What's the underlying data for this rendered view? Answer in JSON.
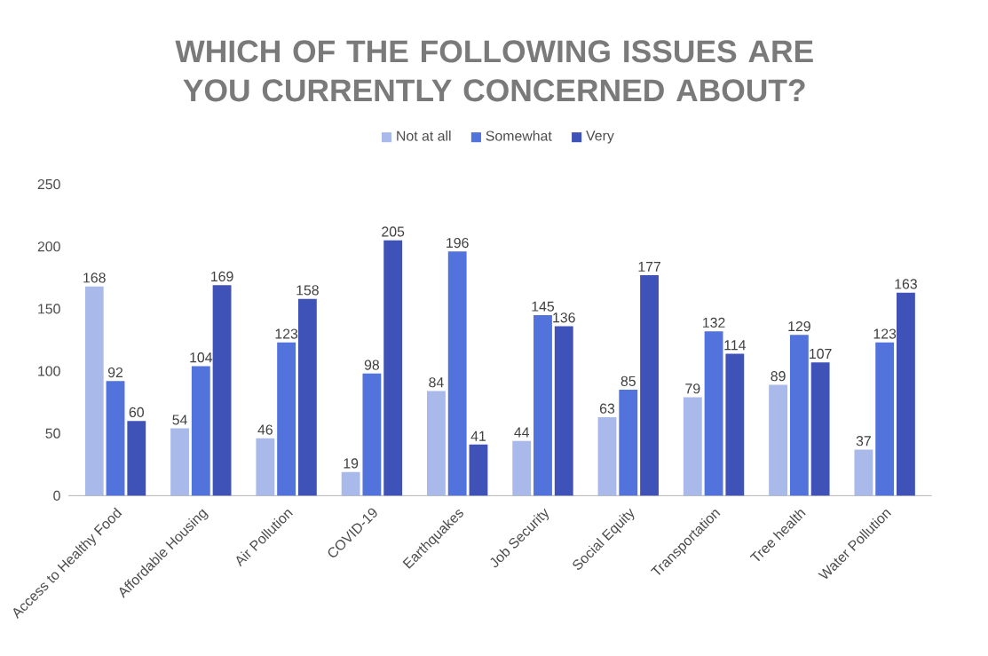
{
  "chart_data": {
    "type": "bar",
    "title": "WHICH OF THE FOLLOWING ISSUES ARE YOU CURRENTLY CONCERNED ABOUT?",
    "categories": [
      "Access to Healthy Food",
      "Affordable Housing",
      "Air Pollution",
      "COVID-19",
      "Earthquakes",
      "Job Security",
      "Social Equity",
      "Transportation",
      "Tree health",
      "Water Pollution"
    ],
    "series": [
      {
        "name": "Not at all",
        "color": "#a9b9ea",
        "values": [
          168,
          54,
          46,
          19,
          84,
          44,
          63,
          79,
          89,
          37
        ]
      },
      {
        "name": "Somewhat",
        "color": "#5272dc",
        "values": [
          92,
          104,
          123,
          98,
          196,
          145,
          85,
          132,
          129,
          123
        ]
      },
      {
        "name": "Very",
        "color": "#3f52b8",
        "values": [
          60,
          169,
          158,
          205,
          41,
          136,
          177,
          114,
          107,
          163
        ]
      }
    ],
    "ylim": [
      0,
      250
    ],
    "yticks": [
      0,
      50,
      100,
      150,
      200,
      250
    ],
    "grid": false,
    "legend": "top",
    "data_labels": true
  }
}
